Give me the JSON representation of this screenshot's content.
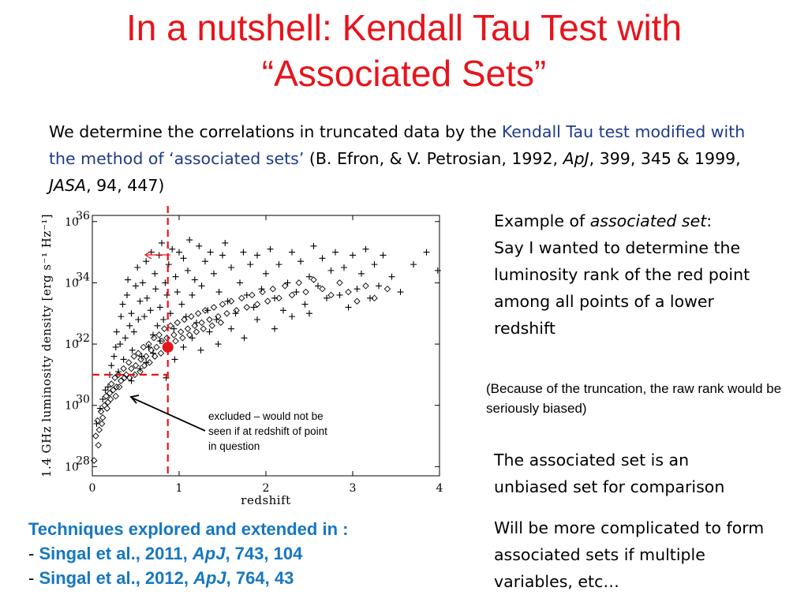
{
  "title": {
    "line1": "In a nutshell: Kendall Tau Test with",
    "line2": "“Associated Sets”"
  },
  "intro": {
    "t1": "We determine the correlations in truncated data by the ",
    "t2": "Kendall Tau test modified with the method of  ‘associated sets’",
    "t3": "  (B. Efron, & V. Petrosian, 1992, ",
    "t4": "ApJ",
    "t5": ", 399, 345 & 1999, ",
    "t6": "JASA",
    "t7": ", 94, 447)"
  },
  "example": {
    "t1": "Example of ",
    "t2": "associated set",
    "t3": ":",
    "t4": "Say I wanted to determine the luminosity rank of the red point among all points of a lower redshift"
  },
  "note": "(Because of the truncation, the raw rank would be seriously biased)",
  "assoc": "The associated set is an unbiased set for comparison",
  "complicated": "Will be more complicated to form associated sets if multiple variables, etc…",
  "techniques": {
    "heading": "Techniques explored and extended in :",
    "items": [
      {
        "dash": "- ",
        "a": "Singal et al., 2011, ",
        "b": "ApJ",
        "c": ", 743, 104"
      },
      {
        "dash": "- ",
        "a": "Singal et al., 2012, ",
        "b": "ApJ",
        "c": ", 764, 43"
      }
    ]
  },
  "chart_data": {
    "type": "scatter",
    "xlabel": "redshift",
    "ylabel": "1.4 GHz luminosity density  [erg  s⁻¹  Hz⁻¹]",
    "x_ticks": [
      "0",
      "1",
      "2",
      "3",
      "4"
    ],
    "y_ticks": [
      "10",
      "10",
      "10",
      "10",
      "10"
    ],
    "y_tick_exponents": [
      "28",
      "30",
      "32",
      "34",
      "36"
    ],
    "xlim": [
      0,
      4
    ],
    "ylim_log10": [
      27.7,
      36.2
    ],
    "annotation": "excluded – would not be seen if at redshift of point in question",
    "highlight_point": {
      "x": 0.87,
      "log10_y": 31.9,
      "color": "#e8141b"
    },
    "cut_lines": {
      "x": 0.87,
      "log10_y": 31.0,
      "color": "#e8141b"
    },
    "series": [
      {
        "marker": "plus",
        "points": [
          [
            0.05,
            29.4
          ],
          [
            0.09,
            29.9
          ],
          [
            0.12,
            30.2
          ],
          [
            0.15,
            30.5
          ],
          [
            0.18,
            30.6
          ],
          [
            0.2,
            31.0
          ],
          [
            0.22,
            31.3
          ],
          [
            0.25,
            31.6
          ],
          [
            0.27,
            31.9
          ],
          [
            0.28,
            32.4
          ],
          [
            0.3,
            31.1
          ],
          [
            0.32,
            32.0
          ],
          [
            0.33,
            32.9
          ],
          [
            0.35,
            33.3
          ],
          [
            0.36,
            31.5
          ],
          [
            0.38,
            32.2
          ],
          [
            0.4,
            33.6
          ],
          [
            0.41,
            34.1
          ],
          [
            0.43,
            32.6
          ],
          [
            0.45,
            33.0
          ],
          [
            0.46,
            31.8
          ],
          [
            0.48,
            32.4
          ],
          [
            0.5,
            33.9
          ],
          [
            0.52,
            34.5
          ],
          [
            0.53,
            32.8
          ],
          [
            0.55,
            33.4
          ],
          [
            0.57,
            31.6
          ],
          [
            0.58,
            34.0
          ],
          [
            0.6,
            32.9
          ],
          [
            0.62,
            34.7
          ],
          [
            0.63,
            33.5
          ],
          [
            0.65,
            31.9
          ],
          [
            0.67,
            33.1
          ],
          [
            0.68,
            35.0
          ],
          [
            0.7,
            32.3
          ],
          [
            0.72,
            34.3
          ],
          [
            0.73,
            33.8
          ],
          [
            0.75,
            32.6
          ],
          [
            0.77,
            34.9
          ],
          [
            0.78,
            33.2
          ],
          [
            0.8,
            35.3
          ],
          [
            0.82,
            32.8
          ],
          [
            0.84,
            34.0
          ],
          [
            0.86,
            33.6
          ],
          [
            0.88,
            34.6
          ],
          [
            0.9,
            33.0
          ],
          [
            0.92,
            35.1
          ],
          [
            0.94,
            32.5
          ],
          [
            0.96,
            34.2
          ],
          [
            0.98,
            33.7
          ],
          [
            1.0,
            35.0
          ],
          [
            1.03,
            33.3
          ],
          [
            1.05,
            34.8
          ],
          [
            1.08,
            32.9
          ],
          [
            1.1,
            34.4
          ],
          [
            1.12,
            35.4
          ],
          [
            1.15,
            33.6
          ],
          [
            1.18,
            34.1
          ],
          [
            1.2,
            32.7
          ],
          [
            1.23,
            35.2
          ],
          [
            1.26,
            33.9
          ],
          [
            1.3,
            34.7
          ],
          [
            1.33,
            33.1
          ],
          [
            1.36,
            35.0
          ],
          [
            1.4,
            34.3
          ],
          [
            1.43,
            32.8
          ],
          [
            1.46,
            33.7
          ],
          [
            1.5,
            34.9
          ],
          [
            1.53,
            35.3
          ],
          [
            1.56,
            33.4
          ],
          [
            1.6,
            34.5
          ],
          [
            1.65,
            33.0
          ],
          [
            1.7,
            34.0
          ],
          [
            1.74,
            35.0
          ],
          [
            1.78,
            33.6
          ],
          [
            1.82,
            34.6
          ],
          [
            1.86,
            33.2
          ],
          [
            1.9,
            34.9
          ],
          [
            1.95,
            33.8
          ],
          [
            2.0,
            34.3
          ],
          [
            2.05,
            35.1
          ],
          [
            2.1,
            33.5
          ],
          [
            2.15,
            34.6
          ],
          [
            2.2,
            33.1
          ],
          [
            2.25,
            34.0
          ],
          [
            2.3,
            35.0
          ],
          [
            2.35,
            33.7
          ],
          [
            2.4,
            34.7
          ],
          [
            2.45,
            33.3
          ],
          [
            2.5,
            34.2
          ],
          [
            2.55,
            35.2
          ],
          [
            2.6,
            33.9
          ],
          [
            2.65,
            34.8
          ],
          [
            2.7,
            33.5
          ],
          [
            2.75,
            34.4
          ],
          [
            2.8,
            35.0
          ],
          [
            2.85,
            33.6
          ],
          [
            2.9,
            34.5
          ],
          [
            2.95,
            33.2
          ],
          [
            3.0,
            34.9
          ],
          [
            3.05,
            33.8
          ],
          [
            3.1,
            34.3
          ],
          [
            3.15,
            35.1
          ],
          [
            3.2,
            33.5
          ],
          [
            3.25,
            34.6
          ],
          [
            3.3,
            33.9
          ],
          [
            3.35,
            34.9
          ],
          [
            3.45,
            34.2
          ],
          [
            3.55,
            33.7
          ],
          [
            3.7,
            34.6
          ],
          [
            3.85,
            35.0
          ],
          [
            3.98,
            34.4
          ],
          [
            0.45,
            30.8
          ],
          [
            0.55,
            31.2
          ],
          [
            0.62,
            31.4
          ],
          [
            0.7,
            31.7
          ],
          [
            0.78,
            32.1
          ],
          [
            0.85,
            30.9
          ],
          [
            0.95,
            31.5
          ],
          [
            1.05,
            31.9
          ],
          [
            1.15,
            32.2
          ],
          [
            1.25,
            31.8
          ],
          [
            1.35,
            32.4
          ],
          [
            1.45,
            32.0
          ],
          [
            1.6,
            32.5
          ],
          [
            1.75,
            32.2
          ],
          [
            1.9,
            32.8
          ],
          [
            2.1,
            32.5
          ],
          [
            2.3,
            32.9
          ],
          [
            2.5,
            33.0
          ]
        ]
      },
      {
        "marker": "diamond",
        "points": [
          [
            0.02,
            28.2
          ],
          [
            0.04,
            29.0
          ],
          [
            0.06,
            29.5
          ],
          [
            0.08,
            29.2
          ],
          [
            0.1,
            29.8
          ],
          [
            0.12,
            29.6
          ],
          [
            0.14,
            30.0
          ],
          [
            0.16,
            30.3
          ],
          [
            0.18,
            30.1
          ],
          [
            0.2,
            30.4
          ],
          [
            0.22,
            30.7
          ],
          [
            0.24,
            30.5
          ],
          [
            0.26,
            30.9
          ],
          [
            0.28,
            30.6
          ],
          [
            0.3,
            31.0
          ],
          [
            0.33,
            30.8
          ],
          [
            0.36,
            31.2
          ],
          [
            0.39,
            31.0
          ],
          [
            0.42,
            31.4
          ],
          [
            0.45,
            31.2
          ],
          [
            0.48,
            31.6
          ],
          [
            0.5,
            31.3
          ],
          [
            0.53,
            31.7
          ],
          [
            0.56,
            31.5
          ],
          [
            0.59,
            31.9
          ],
          [
            0.62,
            31.6
          ],
          [
            0.65,
            32.0
          ],
          [
            0.68,
            31.8
          ],
          [
            0.71,
            32.2
          ],
          [
            0.74,
            31.9
          ],
          [
            0.77,
            32.3
          ],
          [
            0.8,
            32.1
          ],
          [
            0.83,
            32.5
          ],
          [
            0.86,
            32.2
          ],
          [
            0.9,
            32.6
          ],
          [
            0.94,
            32.3
          ],
          [
            0.98,
            32.7
          ],
          [
            1.02,
            32.4
          ],
          [
            1.06,
            32.8
          ],
          [
            1.1,
            32.5
          ],
          [
            1.14,
            32.9
          ],
          [
            1.18,
            32.6
          ],
          [
            1.22,
            33.0
          ],
          [
            1.26,
            32.7
          ],
          [
            1.3,
            33.1
          ],
          [
            1.35,
            32.8
          ],
          [
            1.4,
            33.2
          ],
          [
            1.45,
            32.9
          ],
          [
            1.5,
            33.3
          ],
          [
            1.55,
            33.0
          ],
          [
            1.6,
            33.4
          ],
          [
            1.66,
            33.1
          ],
          [
            1.72,
            33.5
          ],
          [
            1.78,
            33.2
          ],
          [
            1.84,
            33.6
          ],
          [
            1.9,
            33.3
          ],
          [
            1.96,
            33.7
          ],
          [
            2.02,
            33.4
          ],
          [
            2.08,
            33.8
          ],
          [
            2.15,
            33.5
          ],
          [
            2.22,
            33.9
          ],
          [
            2.3,
            33.6
          ],
          [
            2.38,
            34.0
          ],
          [
            2.46,
            33.7
          ],
          [
            2.55,
            34.1
          ],
          [
            2.65,
            33.8
          ],
          [
            2.75,
            33.6
          ],
          [
            2.85,
            34.0
          ],
          [
            2.95,
            33.7
          ],
          [
            3.05,
            33.4
          ],
          [
            3.15,
            33.9
          ],
          [
            3.25,
            33.5
          ],
          [
            3.4,
            33.8
          ],
          [
            0.07,
            28.7
          ],
          [
            0.11,
            29.4
          ],
          [
            0.17,
            29.9
          ],
          [
            0.21,
            30.2
          ],
          [
            0.27,
            30.3
          ],
          [
            0.31,
            30.6
          ],
          [
            0.37,
            30.9
          ],
          [
            0.43,
            30.9
          ],
          [
            0.49,
            31.0
          ],
          [
            0.55,
            31.1
          ],
          [
            0.6,
            31.3
          ],
          [
            0.66,
            31.4
          ],
          [
            0.72,
            31.6
          ],
          [
            0.79,
            31.7
          ],
          [
            0.88,
            31.9
          ],
          [
            0.96,
            32.1
          ],
          [
            1.04,
            32.2
          ],
          [
            1.12,
            32.3
          ],
          [
            1.2,
            32.4
          ],
          [
            1.28,
            32.5
          ],
          [
            1.38,
            32.6
          ],
          [
            1.48,
            32.7
          ]
        ]
      }
    ]
  }
}
